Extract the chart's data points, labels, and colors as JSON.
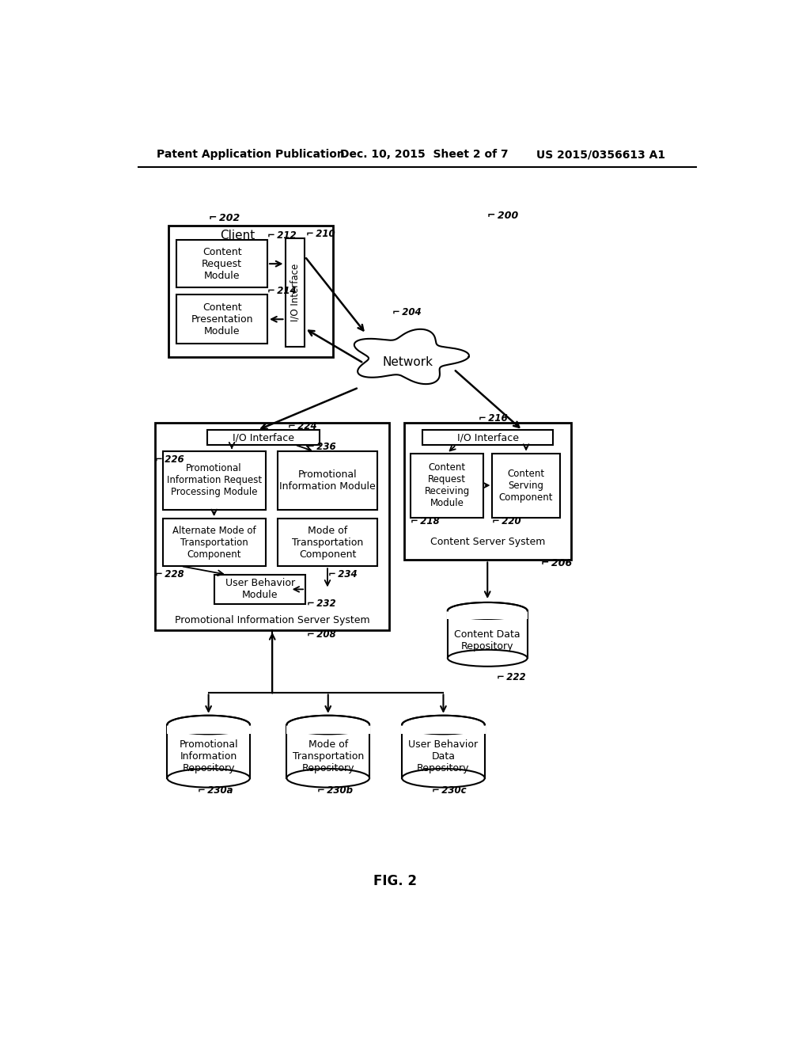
{
  "bg_color": "#ffffff",
  "header_left": "Patent Application Publication",
  "header_mid": "Dec. 10, 2015  Sheet 2 of 7",
  "header_right": "US 2015/0356613 A1",
  "fig_label": "FIG. 2",
  "label_client": "Client",
  "label_crm": "Content\nRequest\nModule",
  "label_cpm": "Content\nPresentation\nModule",
  "label_io_vertical": "I/O Interface",
  "label_network": "Network",
  "label_io_piss": "I/O Interface",
  "label_io_css": "I/O Interface",
  "label_pirpm": "Promotional\nInformation Request\nProcessing Module",
  "label_pim": "Promotional\nInformation Module",
  "label_amotc": "Alternate Mode of\nTransportation\nComponent",
  "label_motc": "Mode of\nTransportation\nComponent",
  "label_ubm": "User Behavior\nModule",
  "label_piss": "Promotional Information Server System",
  "label_crrm": "Content\nRequest\nReceiving\nModule",
  "label_csc": "Content\nServing\nComponent",
  "label_css": "Content Server System",
  "label_cdr": "Content Data\nRepository",
  "label_pir": "Promotional\nInformation\nRepository",
  "label_motr": "Mode of\nTransportation\nRepository",
  "label_ubdr": "User Behavior\nData\nRepository"
}
